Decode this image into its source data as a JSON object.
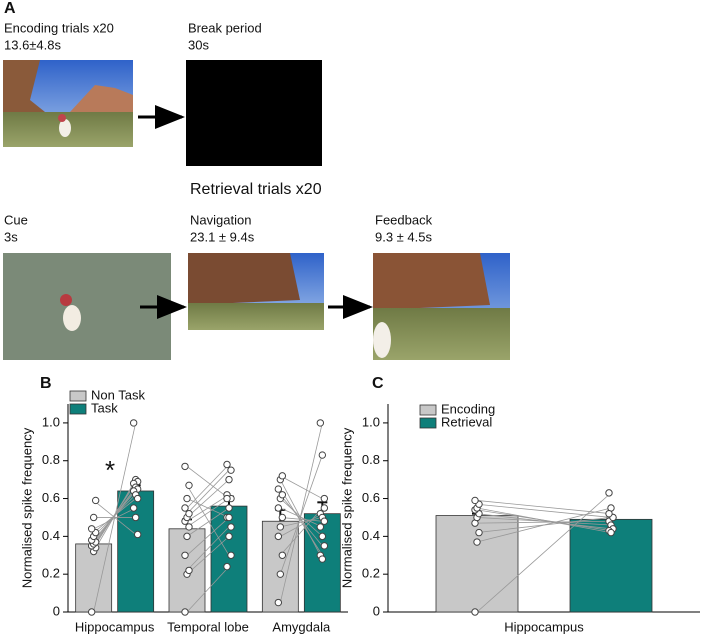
{
  "panel_a": {
    "letter": "A",
    "encoding": {
      "title": "Encoding trials x20",
      "duration": "13.6±4.8s"
    },
    "break": {
      "title": "Break period",
      "duration": "30s"
    },
    "retrieval_title": "Retrieval trials x20",
    "cue": {
      "title": "Cue",
      "duration": "3s"
    },
    "navigation": {
      "title": "Navigation",
      "duration": "23.1 ± 9.4s"
    },
    "feedback": {
      "title": "Feedback",
      "duration": "9.3 ± 4.5s"
    }
  },
  "chart_data": [
    {
      "type": "bar",
      "letter": "B",
      "annotation": "*",
      "ylabel": "Normalised spike frequency",
      "categories": [
        "Hippocampus",
        "Temporal lobe",
        "Amygdala"
      ],
      "ylim": [
        0,
        1.1
      ],
      "yticks": [
        0,
        0.2,
        0.4,
        0.6,
        0.8,
        {
          "value": 1,
          "label": "1.0"
        }
      ],
      "series": [
        {
          "name": "Non Task",
          "color": "#c8c8c8",
          "values": [
            0.36,
            0.44,
            0.48
          ],
          "errors": [
            0.02,
            0.05,
            0.06
          ],
          "points": [
            [
              0.0,
              0.32,
              0.34,
              0.35,
              0.36,
              0.37,
              0.38,
              0.4,
              0.42,
              0.44,
              0.5,
              0.59
            ],
            [
              0.0,
              0.2,
              0.22,
              0.3,
              0.4,
              0.45,
              0.48,
              0.5,
              0.52,
              0.55,
              0.6,
              0.67,
              0.77
            ],
            [
              0.05,
              0.2,
              0.3,
              0.4,
              0.45,
              0.5,
              0.55,
              0.6,
              0.62,
              0.65,
              0.7,
              0.72
            ]
          ]
        },
        {
          "name": "Task",
          "color": "#0e7f7a",
          "values": [
            0.64,
            0.56,
            0.52
          ],
          "errors": [
            0.03,
            0.05,
            0.06
          ],
          "points": [
            [
              1.0,
              0.7,
              0.69,
              0.68,
              0.66,
              0.65,
              0.64,
              0.62,
              0.6,
              0.55,
              0.5,
              0.41
            ],
            [
              0.24,
              0.4,
              0.45,
              0.5,
              0.55,
              0.6,
              0.62,
              0.7,
              0.75,
              0.78,
              0.5,
              0.3,
              0.6
            ],
            [
              1.0,
              0.83,
              0.55,
              0.52,
              0.5,
              0.48,
              0.45,
              0.4,
              0.35,
              0.3,
              0.28,
              0.6
            ]
          ]
        }
      ]
    },
    {
      "type": "bar",
      "letter": "C",
      "ylabel": "Normalised spike frequency",
      "categories": [
        "Hippocampus"
      ],
      "ylim": [
        0,
        1.1
      ],
      "yticks": [
        0,
        0.2,
        0.4,
        0.6,
        0.8,
        {
          "value": 1,
          "label": "1.0"
        }
      ],
      "series": [
        {
          "name": "Encoding",
          "color": "#c8c8c8",
          "values": [
            0.51
          ],
          "errors": [
            0.01
          ],
          "points": [
            [
              0.0,
              0.37,
              0.42,
              0.47,
              0.5,
              0.52,
              0.54,
              0.55,
              0.57,
              0.59
            ]
          ]
        },
        {
          "name": "Retrieval",
          "color": "#0e7f7a",
          "values": [
            0.49
          ],
          "errors": [
            0.01
          ],
          "points": [
            [
              0.63,
              0.55,
              0.5,
              0.48,
              0.46,
              0.44,
              0.43,
              0.42,
              0.5,
              0.52
            ]
          ]
        }
      ]
    }
  ]
}
